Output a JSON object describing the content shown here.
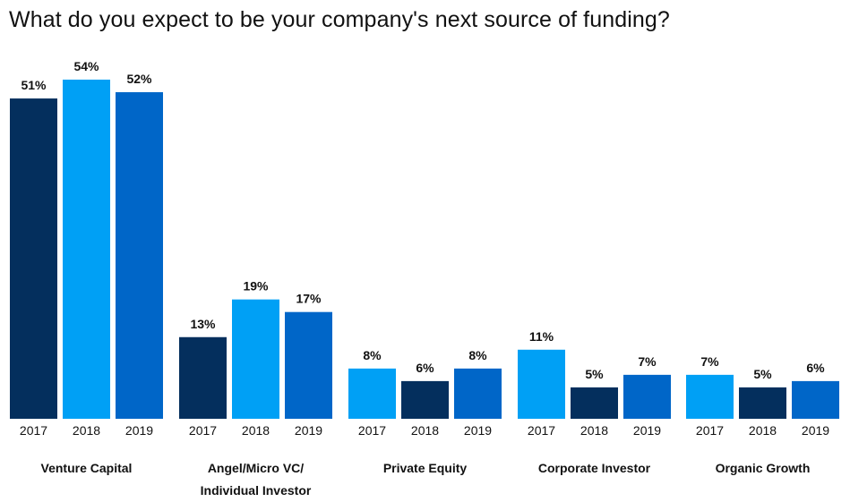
{
  "title": "What do you expect to be your company's next source of funding?",
  "chart_data": {
    "type": "bar",
    "title": "What do you expect to be your company's next source of funding?",
    "value_suffix": "%",
    "ylim": [
      0,
      54
    ],
    "grid": false,
    "legend": "none",
    "colors": {
      "dark": "#042f5d",
      "light": "#00a0f5",
      "mid": "#0066c8"
    },
    "groups": [
      {
        "name": [
          "Venture Capital"
        ],
        "bars": [
          {
            "year": "2017",
            "value": 51,
            "color": "dark"
          },
          {
            "year": "2018",
            "value": 54,
            "color": "light"
          },
          {
            "year": "2019",
            "value": 52,
            "color": "mid"
          }
        ]
      },
      {
        "name": [
          "Angel/Micro VC/",
          "Individual Investor"
        ],
        "bars": [
          {
            "year": "2017",
            "value": 13,
            "color": "dark"
          },
          {
            "year": "2018",
            "value": 19,
            "color": "light"
          },
          {
            "year": "2019",
            "value": 17,
            "color": "mid"
          }
        ]
      },
      {
        "name": [
          "Private Equity"
        ],
        "bars": [
          {
            "year": "2017",
            "value": 8,
            "color": "light"
          },
          {
            "year": "2018",
            "value": 6,
            "color": "dark"
          },
          {
            "year": "2019",
            "value": 8,
            "color": "mid"
          }
        ]
      },
      {
        "name": [
          "Corporate Investor"
        ],
        "bars": [
          {
            "year": "2017",
            "value": 11,
            "color": "light"
          },
          {
            "year": "2018",
            "value": 5,
            "color": "dark"
          },
          {
            "year": "2019",
            "value": 7,
            "color": "mid"
          }
        ]
      },
      {
        "name": [
          "Organic Growth"
        ],
        "bars": [
          {
            "year": "2017",
            "value": 7,
            "color": "light"
          },
          {
            "year": "2018",
            "value": 5,
            "color": "dark"
          },
          {
            "year": "2019",
            "value": 6,
            "color": "mid"
          }
        ]
      }
    ]
  }
}
